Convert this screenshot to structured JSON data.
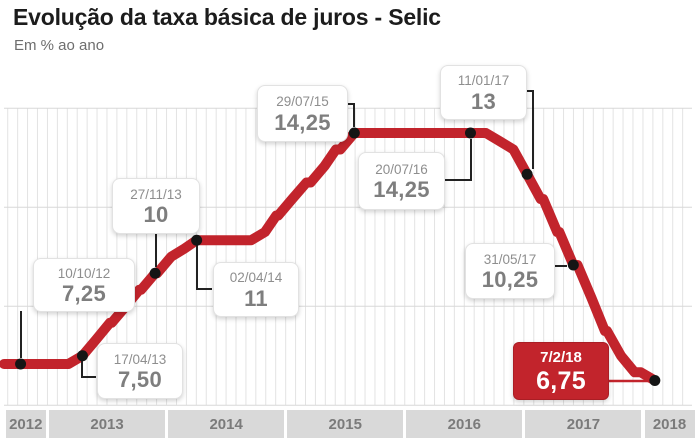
{
  "header": {
    "title": "Evolução da taxa básica de juros - Selic",
    "subtitle": "Em % ao ano"
  },
  "colors": {
    "line": "#c2242c",
    "dot": "#151515",
    "connector": "#222222",
    "highlight_connector": "#c2242c",
    "grid_vertical": "#e3e3e3",
    "grid_horizontal": "#d8d8d8",
    "year_box_fill": "#d9d9d9",
    "year_box_text": "#7b7b7b",
    "label_date_text": "#8e8e8e",
    "label_value_text": "#7e7e7e"
  },
  "chart_data": {
    "type": "line",
    "title": "Evolução da taxa básica de juros - Selic",
    "subtitle": "Em % ao ano",
    "unit": "% ao ano",
    "legend": "none",
    "grid": "monthly vertical lines; horizontal lines every 3 points",
    "x_axis": {
      "year_labels": [
        "2012",
        "2013",
        "2014",
        "2015",
        "2016",
        "2017",
        "2018"
      ]
    },
    "y_axis": {
      "min": 6,
      "max": 15,
      "gridline_values": [
        15,
        12,
        9,
        6
      ],
      "tick_labels_shown": false
    },
    "series": [
      {
        "name": "Selic",
        "points": [
          [
            "2012-08-20",
            7.25
          ],
          [
            "2012-10-10",
            7.25
          ],
          [
            "2013-04-17",
            7.5
          ],
          [
            "2013-05-29",
            8.0
          ],
          [
            "2013-07-10",
            8.5
          ],
          [
            "2013-08-28",
            9.0
          ],
          [
            "2013-10-09",
            9.5
          ],
          [
            "2013-11-27",
            10.0
          ],
          [
            "2014-01-15",
            10.5
          ],
          [
            "2014-02-26",
            10.75
          ],
          [
            "2014-04-02",
            11.0
          ],
          [
            "2014-10-29",
            11.25
          ],
          [
            "2014-12-03",
            11.75
          ],
          [
            "2015-01-21",
            12.25
          ],
          [
            "2015-03-04",
            12.75
          ],
          [
            "2015-04-29",
            13.25
          ],
          [
            "2015-06-03",
            13.75
          ],
          [
            "2015-07-29",
            14.25
          ],
          [
            "2016-07-20",
            14.25
          ],
          [
            "2016-10-19",
            14.0
          ],
          [
            "2016-11-30",
            13.75
          ],
          [
            "2017-01-11",
            13.0
          ],
          [
            "2017-02-22",
            12.25
          ],
          [
            "2017-04-12",
            11.25
          ],
          [
            "2017-05-31",
            10.25
          ],
          [
            "2017-07-26",
            9.25
          ],
          [
            "2017-09-06",
            8.25
          ],
          [
            "2017-10-25",
            7.5
          ],
          [
            "2017-12-06",
            7.0
          ],
          [
            "2018-02-07",
            6.75
          ]
        ]
      }
    ],
    "annotations": [
      {
        "date_label": "10/10/12",
        "value_label": "7,25",
        "date": "2012-10-10",
        "value": 7.25,
        "style": "light"
      },
      {
        "date_label": "17/04/13",
        "value_label": "7,50",
        "date": "2013-04-17",
        "value": 7.5,
        "style": "light"
      },
      {
        "date_label": "27/11/13",
        "value_label": "10",
        "date": "2013-11-27",
        "value": 10.0,
        "style": "light"
      },
      {
        "date_label": "02/04/14",
        "value_label": "11",
        "date": "2014-04-02",
        "value": 11.0,
        "style": "light"
      },
      {
        "date_label": "29/07/15",
        "value_label": "14,25",
        "date": "2015-07-29",
        "value": 14.25,
        "style": "light"
      },
      {
        "date_label": "20/07/16",
        "value_label": "14,25",
        "date": "2016-07-20",
        "value": 14.25,
        "style": "light"
      },
      {
        "date_label": "11/01/17",
        "value_label": "13",
        "date": "2017-01-11",
        "value": 13.0,
        "style": "light"
      },
      {
        "date_label": "31/05/17",
        "value_label": "10,25",
        "date": "2017-05-31",
        "value": 10.25,
        "style": "light"
      },
      {
        "date_label": "7/2/18",
        "value_label": "6,75",
        "date": "2018-02-07",
        "value": 6.75,
        "style": "highlight"
      }
    ]
  }
}
